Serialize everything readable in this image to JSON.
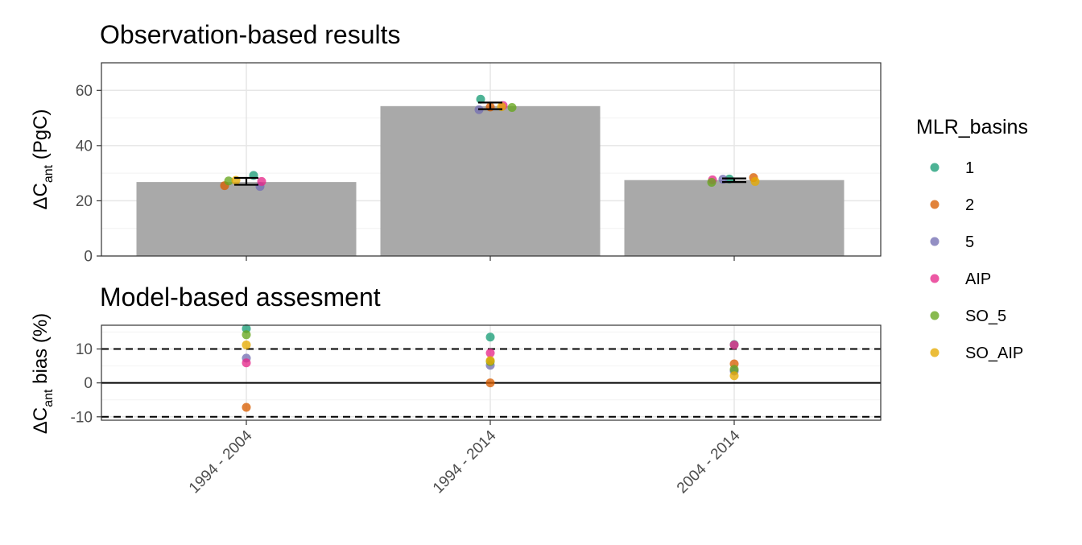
{
  "chart_data": [
    {
      "type": "bar",
      "title": "Observation-based results",
      "xlabel": "",
      "ylabel": {
        "main": "ΔC",
        "sub": "ant",
        "unit": " (PgC)"
      },
      "categories": [
        "1994 - 2004",
        "1994 - 2014",
        "2004 - 2014"
      ],
      "values": [
        26.8,
        54.3,
        27.5
      ],
      "error_bars": [
        [
          25.8,
          28.3
        ],
        [
          53.2,
          55.6
        ],
        [
          26.8,
          28.1
        ]
      ],
      "ylim": [
        0,
        70
      ],
      "yticks": [
        "0",
        "20",
        "40",
        "60"
      ],
      "grid": true,
      "points": [
        {
          "series": "1",
          "values": [
            29.2,
            56.8,
            27.9
          ]
        },
        {
          "series": "2",
          "values": [
            25.5,
            54.0,
            28.4
          ]
        },
        {
          "series": "5",
          "values": [
            25.2,
            53.0,
            27.8
          ]
        },
        {
          "series": "AIP",
          "values": [
            27.0,
            54.5,
            27.6
          ]
        },
        {
          "series": "SO_5",
          "values": [
            27.2,
            53.8,
            26.7
          ]
        },
        {
          "series": "SO_AIP",
          "values": [
            27.4,
            54.1,
            27.0
          ]
        }
      ]
    },
    {
      "type": "scatter",
      "title": "Model-based assesment",
      "xlabel": "",
      "ylabel": {
        "main": "ΔC",
        "sub": "ant",
        "unit": " bias (%)"
      },
      "categories": [
        "1994 - 2004",
        "1994 - 2014",
        "2004 - 2014"
      ],
      "ylim": [
        -11,
        17
      ],
      "yticks": [
        "-10",
        "0",
        "10"
      ],
      "reference_lines": [
        {
          "y": 0,
          "style": "solid"
        },
        {
          "y": 10,
          "style": "dashed"
        },
        {
          "y": -10,
          "style": "dashed"
        }
      ],
      "grid": true,
      "series": [
        {
          "name": "1",
          "values": [
            16.0,
            13.5,
            11.3
          ]
        },
        {
          "name": "2",
          "values": [
            -7.2,
            0.0,
            5.6
          ]
        },
        {
          "name": "5",
          "values": [
            7.3,
            5.2,
            3.5
          ]
        },
        {
          "name": "AIP",
          "values": [
            5.9,
            8.8,
            11.2
          ]
        },
        {
          "name": "SO_5",
          "values": [
            14.2,
            6.3,
            4.0
          ]
        },
        {
          "name": "SO_AIP",
          "values": [
            11.2,
            6.6,
            2.1
          ]
        }
      ]
    }
  ],
  "legend": {
    "title": "MLR_basins",
    "placement": "right",
    "items": [
      {
        "label": "1",
        "color": "#1B9E77"
      },
      {
        "label": "2",
        "color": "#D95F02"
      },
      {
        "label": "5",
        "color": "#7570B3"
      },
      {
        "label": "AIP",
        "color": "#E7298A"
      },
      {
        "label": "SO_5",
        "color": "#66A61E"
      },
      {
        "label": "SO_AIP",
        "color": "#E6AB02"
      }
    ]
  },
  "colors": {
    "bar": "#a9a9a9",
    "grid": "#ebebeb",
    "panel_border": "#333333",
    "tick_text": "#4d4d4d"
  }
}
